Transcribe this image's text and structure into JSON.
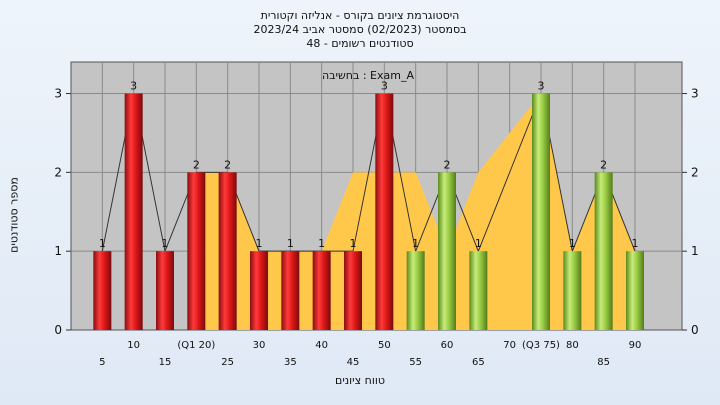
{
  "chart_data": {
    "type": "bar",
    "title": [
      "היסטוגרמת ציונים בקורס - אנליזה וקטורית",
      "בסמסטר  (02/2023)  סמסטר אביב 2023/24",
      "סטודנטים רשומים - 48"
    ],
    "legend": "בחשיבה : Exam_A",
    "xlabel": "טווח ציונים",
    "ylabel": "מספר סטודנטים",
    "ylim": [
      0,
      3.4
    ],
    "yticks": [
      0,
      1,
      2,
      3
    ],
    "categories_top": [
      "10",
      "(Q1 20)",
      "30",
      "40",
      "50",
      "60",
      "70",
      "(Q3 75)",
      "80",
      "90"
    ],
    "categories_bottom": [
      "5",
      "15",
      "25",
      "35",
      "45",
      "55",
      "65",
      "85"
    ],
    "bins": [
      5,
      10,
      15,
      20,
      25,
      30,
      35,
      40,
      45,
      50,
      55,
      60,
      65,
      75,
      80,
      85,
      90
    ],
    "values": [
      1,
      3,
      1,
      2,
      2,
      1,
      1,
      1,
      1,
      3,
      1,
      2,
      1,
      3,
      1,
      2,
      1
    ],
    "bar_colors": [
      "red",
      "red",
      "red",
      "red",
      "red",
      "red",
      "red",
      "red",
      "red",
      "red",
      "green",
      "green",
      "green",
      "green",
      "green",
      "green",
      "green"
    ],
    "band": [
      [
        20,
        2
      ],
      [
        25,
        2
      ],
      [
        30,
        1
      ],
      [
        40,
        1
      ],
      [
        45,
        2
      ],
      [
        55,
        2
      ],
      [
        60,
        1
      ],
      [
        65,
        2
      ],
      [
        75,
        3
      ],
      [
        80,
        1
      ],
      [
        85,
        2
      ],
      [
        90,
        1
      ]
    ]
  }
}
